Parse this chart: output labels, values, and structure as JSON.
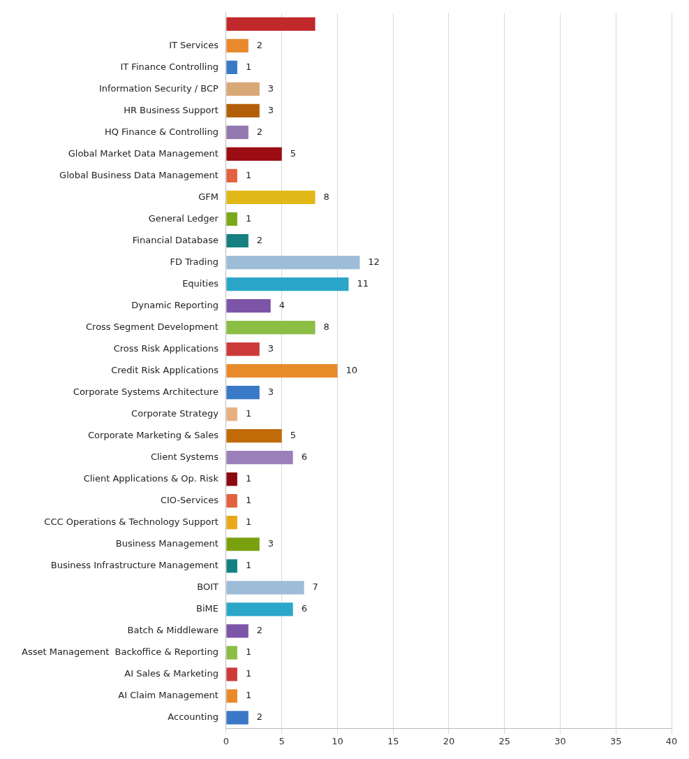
{
  "chart_data": {
    "type": "bar",
    "orientation": "horizontal",
    "categories": [
      null,
      "IT Services",
      "IT Finance Controlling",
      "Information Security / BCP",
      "HR Business Support",
      "HQ Finance & Controlling",
      "Global Market Data Management",
      "Global Business Data Management",
      "GFM",
      "General Ledger",
      "Financial Database",
      "FD Trading",
      "Equities",
      "Dynamic Reporting",
      "Cross Segment Development",
      "Cross Risk Applications",
      "Credit Risk Applications",
      "Corporate Systems Architecture",
      "Corporate Strategy",
      "Corporate Marketing & Sales",
      "Client Systems",
      "Client Applications & Op. Risk",
      "CIO-Services",
      "CCC Operations & Technology Support",
      "Business Management",
      "Business Infrastructure Management",
      "BOIT",
      "BiME",
      "Batch & Middleware",
      "Asset Management  Backoffice & Reporting",
      "AI Sales & Marketing",
      "AI Claim Management",
      "Accounting"
    ],
    "values": [
      8,
      2,
      1,
      3,
      3,
      2,
      5,
      1,
      8,
      1,
      2,
      12,
      11,
      4,
      8,
      3,
      10,
      3,
      1,
      5,
      6,
      1,
      1,
      1,
      3,
      1,
      7,
      6,
      2,
      1,
      1,
      1,
      2
    ],
    "value_labels": [
      null,
      "2",
      "1",
      "3",
      "3",
      "2",
      "5",
      "1",
      "8",
      "1",
      "2",
      "12",
      "11",
      "4",
      "8",
      "3",
      "10",
      "3",
      "1",
      "5",
      "6",
      "1",
      "1",
      "1",
      "3",
      "1",
      "7",
      "6",
      "2",
      "1",
      "1",
      "1",
      "2"
    ],
    "colors": [
      "#c0282b",
      "#e8892e",
      "#3a78c8",
      "#d9a877",
      "#b35f0a",
      "#9479b0",
      "#9b0d12",
      "#e0623e",
      "#e2b818",
      "#7aa81a",
      "#148080",
      "#9dbcd8",
      "#2aa6c8",
      "#7d55a8",
      "#8cbd45",
      "#cc3a3a",
      "#e88a2a",
      "#3a78c8",
      "#e8b080",
      "#c06a08",
      "#9a7fb8",
      "#8a0a10",
      "#e0623e",
      "#e8a818",
      "#7aa010",
      "#148080",
      "#9dbcd8",
      "#2aa6c8",
      "#7d55a8",
      "#8cbd45",
      "#cc3a3a",
      "#e88a2a",
      "#3a78c8"
    ],
    "xlim": [
      0,
      40
    ],
    "xticks": [
      0,
      5,
      10,
      15,
      20,
      25,
      30,
      35,
      40
    ],
    "grid": "x",
    "legend": false
  }
}
